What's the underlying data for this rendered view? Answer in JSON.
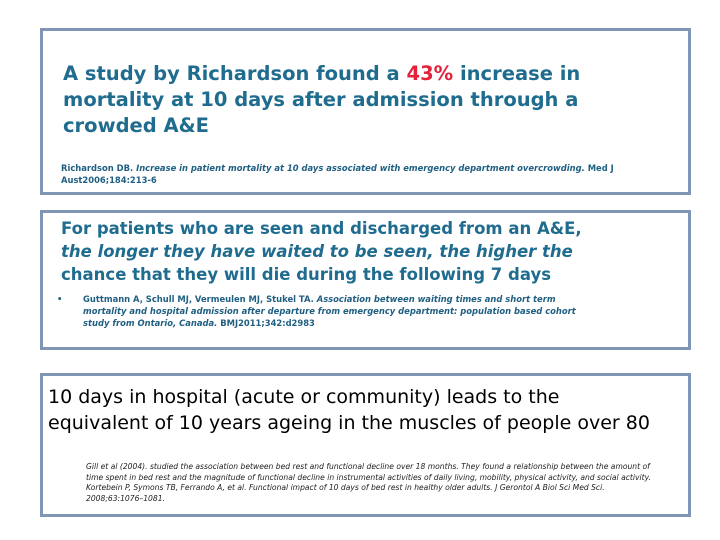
{
  "panel1": {
    "headline_line1_prefix": "A study by Richardson found a ",
    "headline_highlight": "43%",
    "headline_line1_suffix": " increase in",
    "headline_line2": "mortality at 10 days after admission through a",
    "headline_line3": "crowded A&E",
    "citation_author": "Richardson DB. ",
    "citation_title": "Increase in patient mortality at 10 days associated with emergency department overcrowding.",
    "citation_journal_part1": " Med J",
    "citation_journal_part2": "Aust2006;184:213-6"
  },
  "panel2": {
    "headline_line1": "For patients who are seen and discharged from an A&E,",
    "headline_line2": "the longer they have waited to be seen, the higher the",
    "headline_line3": "chance that they will die during the following 7 days",
    "bullet": "•",
    "citation_line1_authors": "Guttmann A, Schull MJ, Vermeulen MJ, Stukel TA. ",
    "citation_line1_title": "Association between waiting times and short term",
    "citation_line2": "mortality and hospital admission after departure from emergency department: population based cohort",
    "citation_line3_title": "study from Ontario, Canada.",
    "citation_line3_ref": " BMJ2011;342:d2983"
  },
  "panel3": {
    "headline_line1": "10 days in hospital (acute or community) leads to the",
    "headline_line2": "equivalent of 10 years ageing in the  muscles of people over 80",
    "notes": [
      "Gill et al (2004). studied the association between bed rest and functional decline over 18 months. They found a relationship between the amount of",
      "time spent in bed rest and the magnitude of functional decline in instrumental activities of daily living, mobility, physical activity, and social activity.",
      "Kortebein P, Symons TB, Ferrando A, et al. Functional impact of 10 days of bed rest in healthy older adults. J Gerontol A Biol Sci Med Sci.",
      "2008;63:1076–1081."
    ]
  },
  "colors": {
    "border": "#7f96b4",
    "headline_blue": "#1f6c8f",
    "highlight_red": "#e2223b",
    "citation_blue": "#1f5f82"
  }
}
